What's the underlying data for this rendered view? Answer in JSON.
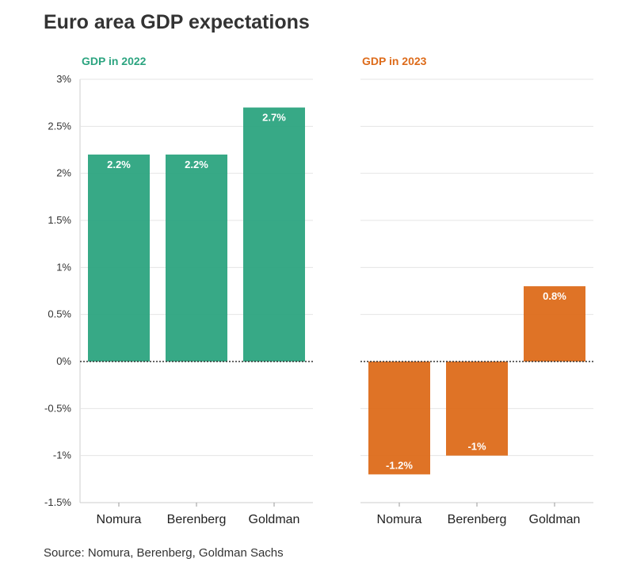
{
  "title": "Euro area GDP expectations",
  "source": "Source: Nomura, Berenberg, Goldman Sachs",
  "y_ticks": [
    "3%",
    "2.5%",
    "2%",
    "1.5%",
    "1%",
    "0.5%",
    "0%",
    "-0.5%",
    "-1%",
    "-1.5%"
  ],
  "chart_data": [
    {
      "type": "bar",
      "title": "GDP in 2022",
      "color": "#2ca480",
      "categories": [
        "Nomura",
        "Berenberg",
        "Goldman"
      ],
      "values": [
        2.2,
        2.2,
        2.7
      ],
      "data_labels": [
        "2.2%",
        "2.2%",
        "2.7%"
      ],
      "ylim": [
        -1.5,
        3
      ],
      "grid": true
    },
    {
      "type": "bar",
      "title": "GDP in 2023",
      "color": "#dd6b1a",
      "categories": [
        "Nomura",
        "Berenberg",
        "Goldman"
      ],
      "values": [
        -1.2,
        -1,
        0.8
      ],
      "data_labels": [
        "-1.2%",
        "-1%",
        "0.8%"
      ],
      "ylim": [
        -1.5,
        3
      ],
      "grid": true
    }
  ]
}
